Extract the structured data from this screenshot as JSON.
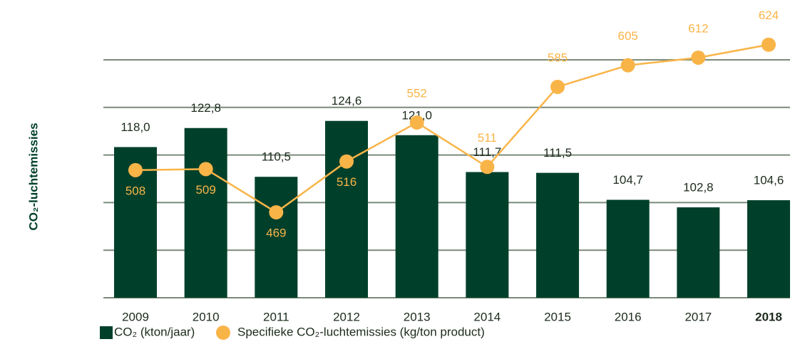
{
  "chart_data": {
    "type": "bar_line",
    "y_axis_label": "CO₂-luchtemissies",
    "categories": [
      "2009",
      "2010",
      "2011",
      "2012",
      "2013",
      "2014",
      "2015",
      "2016",
      "2017",
      "2018"
    ],
    "bold_category_index": 9,
    "series": [
      {
        "name": "CO₂ (kton/jaar)",
        "type": "bar",
        "color": "#00402a",
        "values": [
          118.0,
          122.8,
          110.5,
          124.6,
          121.0,
          111.7,
          111.5,
          104.7,
          102.8,
          104.6
        ],
        "value_labels": [
          "118,0",
          "122,8",
          "110,5",
          "124,6",
          "121,0",
          "111,7",
          "111,5",
          "104,7",
          "102,8",
          "104,6"
        ]
      },
      {
        "name": "Specifieke CO₂-luchtemissies (kg/ton product)",
        "type": "line",
        "axis": "y2",
        "color": "#f9b448",
        "values": [
          508,
          509,
          469,
          516,
          552,
          511,
          585,
          605,
          612,
          624
        ]
      }
    ],
    "ylim": [
      80,
      140
    ],
    "yticks": [
      80,
      92,
      104,
      116,
      128,
      140
    ],
    "y2lim": [
      390,
      610
    ],
    "y2ticks": [
      390,
      434,
      478,
      522,
      566,
      610
    ],
    "grid": true
  }
}
